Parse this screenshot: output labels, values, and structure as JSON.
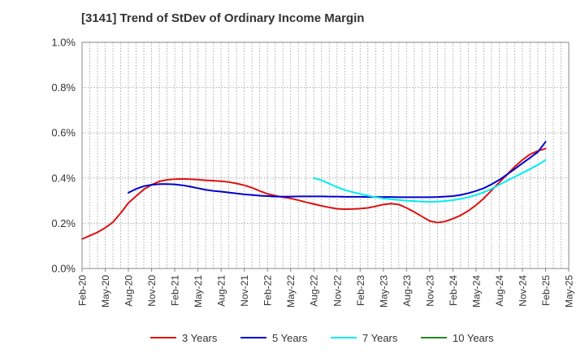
{
  "chart_data": {
    "type": "line",
    "title": "[3141]  Trend of StDev of Ordinary Income Margin",
    "xlabel": "",
    "ylabel": "",
    "x_ticks": [
      "Feb-20",
      "May-20",
      "Aug-20",
      "Nov-20",
      "Feb-21",
      "May-21",
      "Aug-21",
      "Nov-21",
      "Feb-22",
      "May-22",
      "Aug-22",
      "Nov-22",
      "Feb-23",
      "May-23",
      "Aug-23",
      "Nov-23",
      "Feb-24",
      "May-24",
      "Aug-24",
      "Nov-24",
      "Feb-25",
      "May-25"
    ],
    "y_ticks": [
      "0.0%",
      "0.2%",
      "0.4%",
      "0.6%",
      "0.8%",
      "1.0%"
    ],
    "ylim": [
      0,
      1.0
    ],
    "y_unit": "%",
    "grid": true,
    "legend_position": "bottom",
    "series": [
      {
        "name": "3 Years",
        "color": "#dd1111",
        "x": [
          "Feb-20",
          "Mar-20",
          "Apr-20",
          "May-20",
          "Jun-20",
          "Jul-20",
          "Aug-20",
          "Sep-20",
          "Oct-20",
          "Nov-20",
          "Dec-20",
          "Jan-21",
          "Feb-21",
          "Mar-21",
          "Apr-21",
          "May-21",
          "Jun-21",
          "Jul-21",
          "Aug-21",
          "Sep-21",
          "Oct-21",
          "Nov-21",
          "Dec-21",
          "Jan-22",
          "Feb-22",
          "Mar-22",
          "Apr-22",
          "May-22",
          "Jun-22",
          "Jul-22",
          "Aug-22",
          "Sep-22",
          "Oct-22",
          "Nov-22",
          "Dec-22",
          "Jan-23",
          "Feb-23",
          "Mar-23",
          "Apr-23",
          "May-23",
          "Jun-23",
          "Jul-23",
          "Aug-23",
          "Sep-23",
          "Oct-23",
          "Nov-23",
          "Dec-23",
          "Jan-24",
          "Feb-24",
          "Mar-24",
          "Apr-24",
          "May-24",
          "Jun-24",
          "Jul-24",
          "Aug-24",
          "Sep-24",
          "Oct-24",
          "Nov-24",
          "Dec-24",
          "Jan-25",
          "Feb-25"
        ],
        "values": [
          0.13,
          0.145,
          0.16,
          0.18,
          0.205,
          0.245,
          0.29,
          0.32,
          0.35,
          0.37,
          0.385,
          0.392,
          0.395,
          0.396,
          0.395,
          0.393,
          0.39,
          0.388,
          0.386,
          0.382,
          0.376,
          0.368,
          0.357,
          0.343,
          0.33,
          0.322,
          0.315,
          0.31,
          0.302,
          0.293,
          0.285,
          0.277,
          0.27,
          0.264,
          0.262,
          0.263,
          0.265,
          0.268,
          0.275,
          0.283,
          0.287,
          0.283,
          0.268,
          0.25,
          0.23,
          0.21,
          0.203,
          0.208,
          0.22,
          0.235,
          0.255,
          0.28,
          0.31,
          0.345,
          0.38,
          0.415,
          0.45,
          0.48,
          0.505,
          0.52,
          0.53
        ]
      },
      {
        "name": "5 Years",
        "color": "#0000cc",
        "x": [
          "Feb-21",
          "Mar-21",
          "Apr-21",
          "May-21",
          "Jun-21",
          "Jul-21",
          "Aug-21",
          "Sep-21",
          "Oct-21",
          "Nov-21",
          "Dec-21",
          "Jan-22",
          "Feb-22",
          "Mar-22",
          "Apr-22",
          "May-22",
          "Jun-22",
          "Jul-22",
          "Aug-22",
          "Sep-22",
          "Oct-22",
          "Nov-22",
          "Dec-22",
          "Jan-23",
          "Feb-23",
          "Mar-23",
          "Apr-23",
          "May-23",
          "Jun-23",
          "Jul-23",
          "Aug-23",
          "Sep-23",
          "Oct-23",
          "Nov-23",
          "Dec-23",
          "Jan-24",
          "Feb-24",
          "Mar-24",
          "Apr-24",
          "May-24",
          "Jun-24",
          "Jul-24",
          "Aug-24",
          "Sep-24",
          "Oct-24",
          "Nov-24",
          "Dec-24",
          "Jan-25",
          "Feb-25"
        ],
        "x_prefix": [
          "Aug-20",
          "Sep-20",
          "Oct-20",
          "Nov-20",
          "Dec-20",
          "Jan-21"
        ],
        "values_prefix": [
          0.335,
          0.352,
          0.364,
          0.37,
          0.373,
          0.373
        ],
        "values": [
          0.372,
          0.368,
          0.362,
          0.355,
          0.348,
          0.343,
          0.34,
          0.336,
          0.332,
          0.328,
          0.325,
          0.322,
          0.32,
          0.318,
          0.318,
          0.318,
          0.319,
          0.319,
          0.319,
          0.319,
          0.318,
          0.318,
          0.317,
          0.317,
          0.317,
          0.316,
          0.316,
          0.316,
          0.316,
          0.315,
          0.315,
          0.315,
          0.315,
          0.315,
          0.316,
          0.318,
          0.32,
          0.325,
          0.333,
          0.343,
          0.355,
          0.372,
          0.392,
          0.415,
          0.44,
          0.465,
          0.49,
          0.515,
          0.535
        ],
        "values_tail": [
          0.56
        ]
      },
      {
        "name": "7 Years",
        "color": "#00eeee",
        "x": [
          "Aug-22",
          "Sep-22",
          "Oct-22",
          "Nov-22",
          "Dec-22",
          "Jan-23",
          "Feb-23",
          "Mar-23",
          "Apr-23",
          "May-23",
          "Jun-23",
          "Jul-23",
          "Aug-23",
          "Sep-23",
          "Oct-23",
          "Nov-23",
          "Dec-23",
          "Jan-24",
          "Feb-24",
          "Mar-24",
          "Apr-24",
          "May-24",
          "Jun-24",
          "Jul-24",
          "Aug-24",
          "Sep-24",
          "Oct-24",
          "Nov-24",
          "Dec-24",
          "Jan-25",
          "Feb-25"
        ],
        "values": [
          0.4,
          0.39,
          0.375,
          0.36,
          0.347,
          0.338,
          0.33,
          0.322,
          0.315,
          0.31,
          0.306,
          0.303,
          0.3,
          0.298,
          0.296,
          0.295,
          0.296,
          0.298,
          0.302,
          0.308,
          0.315,
          0.325,
          0.337,
          0.352,
          0.37,
          0.388,
          0.405,
          0.422,
          0.44,
          0.458,
          0.48
        ]
      },
      {
        "name": "10 Years",
        "color": "#228b22",
        "x": [],
        "values": []
      }
    ]
  }
}
